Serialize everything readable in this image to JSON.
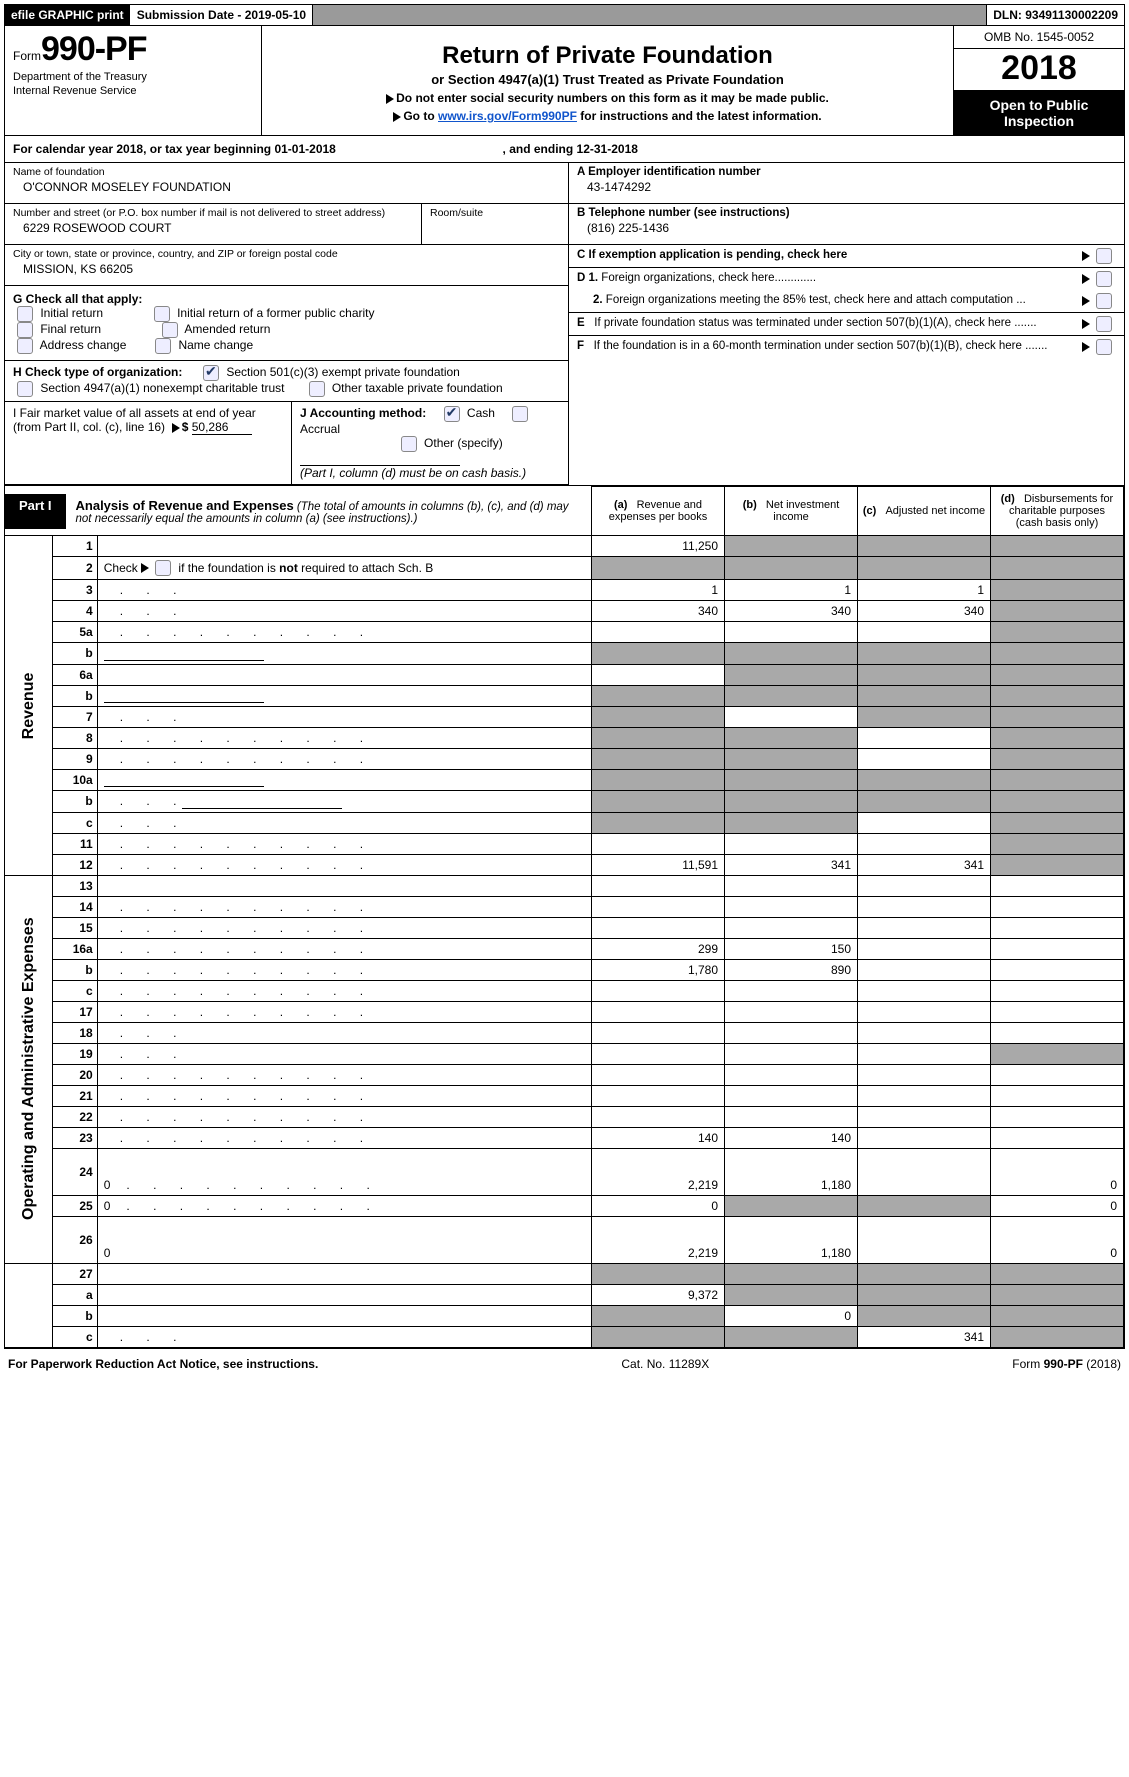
{
  "topbar": {
    "efile": "efile GRAPHIC print",
    "submission_label": "Submission Date - ",
    "submission_date": "2019-05-10",
    "dln_label": "DLN: ",
    "dln": "93491130002209"
  },
  "header": {
    "form_prefix": "Form",
    "form_no": "990-PF",
    "dept1": "Department of the Treasury",
    "dept2": "Internal Revenue Service",
    "title": "Return of Private Foundation",
    "subtitle": "or Section 4947(a)(1) Trust Treated as Private Foundation",
    "note1": "Do not enter social security numbers on this form as it may be made public.",
    "note2_pre": "Go to ",
    "note2_link": "www.irs.gov/Form990PF",
    "note2_post": " for instructions and the latest information.",
    "omb": "OMB No. 1545-0052",
    "year": "2018",
    "open": "Open to Public Inspection"
  },
  "cal_year": {
    "pre": "For calendar year 2018, or tax year beginning ",
    "begin": "01-01-2018",
    "mid": " , and ending ",
    "end": "12-31-2018"
  },
  "entity": {
    "name_lbl": "Name of foundation",
    "name": "O'CONNOR MOSELEY FOUNDATION",
    "street_lbl": "Number and street (or P.O. box number if mail is not delivered to street address)",
    "room_lbl": "Room/suite",
    "street": "6229 ROSEWOOD COURT",
    "city_lbl": "City or town, state or province, country, and ZIP or foreign postal code",
    "city": "MISSION, KS  66205"
  },
  "rightinfo": {
    "A_lbl": "A Employer identification number",
    "A_val": "43-1474292",
    "B_lbl": "B Telephone number (see instructions)",
    "B_val": "(816) 225-1436",
    "C_lbl": "C  If exemption application is pending, check here",
    "D1": "D 1. Foreign organizations, check here.............",
    "D2": "2. Foreign organizations meeting the 85% test, check here and attach computation ...",
    "E": "E   If private foundation status was terminated under section 507(b)(1)(A), check here .......",
    "F": "F   If the foundation is in a 60-month termination under section 507(b)(1)(B), check here ......."
  },
  "G": {
    "label": "G Check all that apply:",
    "o1": "Initial return",
    "o2": "Initial return of a former public charity",
    "o3": "Final return",
    "o4": "Amended return",
    "o5": "Address change",
    "o6": "Name change"
  },
  "H": {
    "label": "H Check type of organization:",
    "o1": "Section 501(c)(3) exempt private foundation",
    "o2": "Section 4947(a)(1) nonexempt charitable trust",
    "o3": "Other taxable private foundation"
  },
  "I": {
    "left": "I Fair market value of all assets at end of year (from Part II, col. (c), line 16)",
    "val": "50,286",
    "J": "J Accounting method:",
    "j1": "Cash",
    "j2": "Accrual",
    "j3": "Other (specify)",
    "jnote": "(Part I, column (d) must be on cash basis.)"
  },
  "part1": {
    "tab": "Part I",
    "title": "Analysis of Revenue and Expenses",
    "note": "(The total of amounts in columns (b), (c), and (d) may not necessarily equal the amounts in column (a) (see instructions).)",
    "col_a": "Revenue and expenses per books",
    "col_b": "Net investment income",
    "col_c": "Adjusted net income",
    "col_d": "Disbursements for charitable purposes (cash basis only)",
    "a": "(a)",
    "b": "(b)",
    "c": "(c)",
    "d": "(d)"
  },
  "sections": {
    "revenue": "Revenue",
    "expenses": "Operating and Administrative Expenses"
  },
  "rows": [
    {
      "n": "1",
      "d": "",
      "a": "11,250",
      "b": "",
      "c": "",
      "sa": false,
      "sb": true,
      "sc": true,
      "sd": true
    },
    {
      "n": "2",
      "d": "",
      "a": "",
      "b": "",
      "c": "",
      "sa": true,
      "sb": true,
      "sc": true,
      "sd": true,
      "checkbox": true
    },
    {
      "n": "3",
      "d": "",
      "a": "1",
      "b": "1",
      "c": "1",
      "sd": true,
      "dots": "short"
    },
    {
      "n": "4",
      "d": "",
      "a": "340",
      "b": "340",
      "c": "340",
      "sd": true,
      "dots": "short"
    },
    {
      "n": "5a",
      "d": "",
      "a": "",
      "b": "",
      "c": "",
      "sd": true,
      "dots": "long"
    },
    {
      "n": "b",
      "d": "",
      "a": "",
      "b": "",
      "c": "",
      "sa": true,
      "sb": true,
      "sc": true,
      "sd": true,
      "ul": true
    },
    {
      "n": "6a",
      "d": "",
      "a": "",
      "b": "",
      "c": "",
      "sb": true,
      "sc": true,
      "sd": true
    },
    {
      "n": "b",
      "d": "",
      "a": "",
      "b": "",
      "c": "",
      "sa": true,
      "sb": true,
      "sc": true,
      "sd": true,
      "ul": true
    },
    {
      "n": "7",
      "d": "",
      "a": "",
      "b": "",
      "c": "",
      "sa": true,
      "sc": true,
      "sd": true,
      "dots": "short"
    },
    {
      "n": "8",
      "d": "",
      "a": "",
      "b": "",
      "c": "",
      "sa": true,
      "sb": true,
      "sd": true,
      "dots": "long"
    },
    {
      "n": "9",
      "d": "",
      "a": "",
      "b": "",
      "c": "",
      "sa": true,
      "sb": true,
      "sd": true,
      "dots": "long"
    },
    {
      "n": "10a",
      "d": "",
      "a": "",
      "b": "",
      "c": "",
      "sa": true,
      "sb": true,
      "sc": true,
      "sd": true,
      "ul": true,
      "ulright": true
    },
    {
      "n": "b",
      "d": "",
      "a": "",
      "b": "",
      "c": "",
      "sa": true,
      "sb": true,
      "sc": true,
      "sd": true,
      "ul": true,
      "ulright": true,
      "dots": "short"
    },
    {
      "n": "c",
      "d": "",
      "a": "",
      "b": "",
      "c": "",
      "sa": true,
      "sb": true,
      "sd": true,
      "dots": "short"
    },
    {
      "n": "11",
      "d": "",
      "a": "",
      "b": "",
      "c": "",
      "sd": true,
      "dots": "long"
    },
    {
      "n": "12",
      "d": "",
      "a": "11,591",
      "b": "341",
      "c": "341",
      "sd": true,
      "dots": "long",
      "bold": true
    }
  ],
  "exp_rows": [
    {
      "n": "13",
      "d": "",
      "a": "",
      "b": "",
      "c": ""
    },
    {
      "n": "14",
      "d": "",
      "a": "",
      "b": "",
      "c": "",
      "dots": "long"
    },
    {
      "n": "15",
      "d": "",
      "a": "",
      "b": "",
      "c": "",
      "dots": "long"
    },
    {
      "n": "16a",
      "d": "",
      "a": "299",
      "b": "150",
      "c": "",
      "dots": "long"
    },
    {
      "n": "b",
      "d": "",
      "a": "1,780",
      "b": "890",
      "c": "",
      "dots": "long"
    },
    {
      "n": "c",
      "d": "",
      "a": "",
      "b": "",
      "c": "",
      "dots": "long"
    },
    {
      "n": "17",
      "d": "",
      "a": "",
      "b": "",
      "c": "",
      "dots": "long"
    },
    {
      "n": "18",
      "d": "",
      "a": "",
      "b": "",
      "c": "",
      "dots": "short"
    },
    {
      "n": "19",
      "d": "",
      "a": "",
      "b": "",
      "c": "",
      "sd": true,
      "dots": "short"
    },
    {
      "n": "20",
      "d": "",
      "a": "",
      "b": "",
      "c": "",
      "dots": "long"
    },
    {
      "n": "21",
      "d": "",
      "a": "",
      "b": "",
      "c": "",
      "dots": "long"
    },
    {
      "n": "22",
      "d": "",
      "a": "",
      "b": "",
      "c": "",
      "dots": "long"
    },
    {
      "n": "23",
      "d": "",
      "a": "140",
      "b": "140",
      "c": "",
      "dots": "long"
    },
    {
      "n": "24",
      "d": "0",
      "a": "2,219",
      "b": "1,180",
      "c": "",
      "dots": "long",
      "tall": true
    },
    {
      "n": "25",
      "d": "0",
      "a": "0",
      "b": "",
      "c": "",
      "sb": true,
      "sc": true,
      "dots": "long"
    },
    {
      "n": "26",
      "d": "0",
      "a": "2,219",
      "b": "1,180",
      "c": "",
      "tall": true
    }
  ],
  "net_rows": [
    {
      "n": "27",
      "d": "",
      "a": "",
      "b": "",
      "c": "",
      "sa": true,
      "sb": true,
      "sc": true,
      "sd": true
    },
    {
      "n": "a",
      "d": "",
      "a": "9,372",
      "b": "",
      "c": "",
      "sb": true,
      "sc": true,
      "sd": true
    },
    {
      "n": "b",
      "d": "",
      "a": "",
      "b": "0",
      "c": "",
      "sa": true,
      "sc": true,
      "sd": true
    },
    {
      "n": "c",
      "d": "",
      "a": "",
      "b": "",
      "c": "341",
      "sa": true,
      "sb": true,
      "sd": true,
      "dots": "short"
    }
  ],
  "footer": {
    "left": "For Paperwork Reduction Act Notice, see instructions.",
    "mid": "Cat. No. 11289X",
    "right_pre": "Form ",
    "right_form": "990-PF",
    "right_post": " (2018)"
  }
}
